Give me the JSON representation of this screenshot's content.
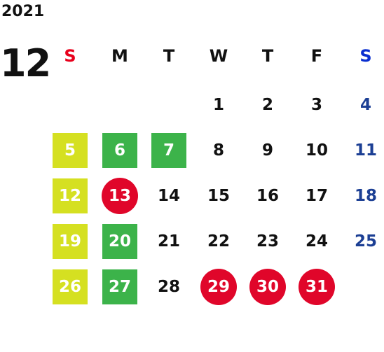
{
  "year": "2021",
  "month": "12",
  "weekdays": [
    {
      "label": "S",
      "color": "#e8001c"
    },
    {
      "label": "M",
      "color": "#111111"
    },
    {
      "label": "T",
      "color": "#111111"
    },
    {
      "label": "W",
      "color": "#111111"
    },
    {
      "label": "T",
      "color": "#111111"
    },
    {
      "label": "F",
      "color": "#111111"
    },
    {
      "label": "S",
      "color": "#0a2fd0"
    }
  ],
  "saturday_color": "#1c3f94",
  "weeks": [
    [
      null,
      null,
      null,
      {
        "label": "1"
      },
      {
        "label": "2"
      },
      {
        "label": "3"
      },
      {
        "label": "4"
      }
    ],
    [
      {
        "label": "5",
        "bg": "#d5e021",
        "shape": "square"
      },
      {
        "label": "6",
        "bg": "#3cb34a",
        "shape": "square"
      },
      {
        "label": "7",
        "bg": "#3cb34a",
        "shape": "square"
      },
      {
        "label": "8"
      },
      {
        "label": "9"
      },
      {
        "label": "10"
      },
      {
        "label": "11"
      }
    ],
    [
      {
        "label": "12",
        "bg": "#d5e021",
        "shape": "square"
      },
      {
        "label": "13",
        "bg": "#e0062a",
        "shape": "circle"
      },
      {
        "label": "14"
      },
      {
        "label": "15"
      },
      {
        "label": "16"
      },
      {
        "label": "17"
      },
      {
        "label": "18"
      }
    ],
    [
      {
        "label": "19",
        "bg": "#d5e021",
        "shape": "square"
      },
      {
        "label": "20",
        "bg": "#3cb34a",
        "shape": "square"
      },
      {
        "label": "21"
      },
      {
        "label": "22"
      },
      {
        "label": "23"
      },
      {
        "label": "24"
      },
      {
        "label": "25"
      }
    ],
    [
      {
        "label": "26",
        "bg": "#d5e021",
        "shape": "square"
      },
      {
        "label": "27",
        "bg": "#3cb34a",
        "shape": "square"
      },
      {
        "label": "28"
      },
      {
        "label": "29",
        "bg": "#e0062a",
        "shape": "circle"
      },
      {
        "label": "30",
        "bg": "#e0062a",
        "shape": "circle"
      },
      {
        "label": "31",
        "bg": "#e0062a",
        "shape": "circle"
      },
      null
    ]
  ]
}
